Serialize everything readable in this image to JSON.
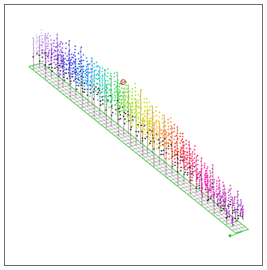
{
  "viewport": {
    "background": "#ffffff",
    "frame_color": "#2a2a2a"
  },
  "scene": {
    "grid_color": "#22c022",
    "mesh_color": "#3a3a3a",
    "stem_color": "#5a2a2a",
    "marker_color": "#c02020",
    "hue_gradient": [
      "#e0d0f0",
      "#8a2be2",
      "#1e4bff",
      "#00d8e8",
      "#30e030",
      "#c8e800",
      "#ffb000",
      "#ff2020",
      "#ff1aa0",
      "#d040d0",
      "#9a20c0"
    ]
  }
}
